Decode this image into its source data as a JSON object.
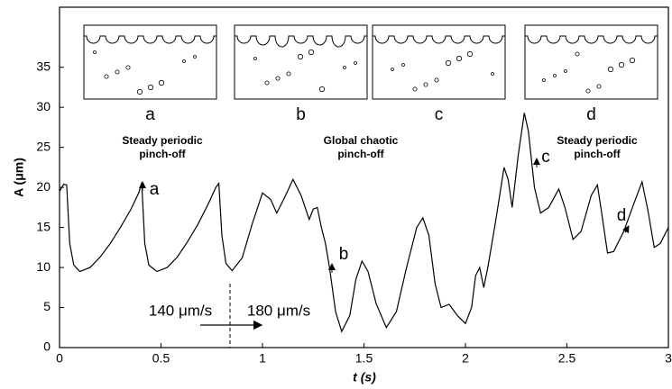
{
  "chart_data": {
    "type": "line",
    "xlabel": "t (s)",
    "ylabel": "A (μm)",
    "xlim": [
      0,
      3
    ],
    "ylim": [
      0,
      42.5
    ],
    "xticks": [
      0,
      0.5,
      1,
      1.5,
      2,
      2.5,
      3
    ],
    "yticks": [
      0,
      5,
      10,
      15,
      20,
      25,
      30,
      35
    ],
    "series": [
      {
        "color": "#000000",
        "x": [
          0,
          0.02,
          0.035,
          0.05,
          0.07,
          0.1,
          0.15,
          0.2,
          0.25,
          0.3,
          0.35,
          0.39,
          0.405,
          0.42,
          0.44,
          0.48,
          0.53,
          0.58,
          0.63,
          0.68,
          0.73,
          0.77,
          0.785,
          0.8,
          0.82,
          0.85,
          0.9,
          0.95,
          1.0,
          1.04,
          1.07,
          1.11,
          1.15,
          1.19,
          1.23,
          1.25,
          1.27,
          1.29,
          1.31,
          1.33,
          1.36,
          1.39,
          1.43,
          1.46,
          1.49,
          1.52,
          1.56,
          1.61,
          1.66,
          1.71,
          1.76,
          1.79,
          1.82,
          1.85,
          1.88,
          1.92,
          1.96,
          2.0,
          2.03,
          2.05,
          2.07,
          2.09,
          2.11,
          2.15,
          2.19,
          2.21,
          2.23,
          2.26,
          2.29,
          2.31,
          2.34,
          2.37,
          2.41,
          2.46,
          2.49,
          2.53,
          2.57,
          2.62,
          2.65,
          2.67,
          2.7,
          2.73,
          2.78,
          2.83,
          2.87,
          2.9,
          2.93,
          2.96,
          3.0
        ],
        "values": [
          19.5,
          20.4,
          20.3,
          13,
          10.3,
          9.5,
          10,
          11.3,
          13,
          15,
          17.2,
          19.3,
          20.6,
          13,
          10.3,
          9.5,
          10,
          11.3,
          13.2,
          15.3,
          17.8,
          20,
          20.5,
          14,
          10.5,
          9.6,
          11.2,
          15.5,
          19.3,
          18.5,
          16.8,
          18.8,
          21,
          19,
          16,
          17.3,
          17.5,
          15,
          13,
          10,
          4.5,
          2,
          4,
          8.5,
          10.8,
          9.5,
          5.5,
          2.5,
          4.5,
          10,
          15,
          16.2,
          14,
          8,
          5,
          5.4,
          4,
          3,
          5,
          9,
          10,
          7.5,
          10,
          16,
          22.5,
          21,
          17.5,
          24,
          29.3,
          27,
          20,
          16.8,
          17.5,
          19.8,
          17.5,
          13.5,
          14.5,
          19,
          20.3,
          17,
          11.8,
          12,
          14.5,
          18,
          20.7,
          17,
          12.5,
          13,
          15
        ]
      }
    ],
    "inset_labels": [
      "a",
      "b",
      "c",
      "d"
    ],
    "point_labels": [
      "a",
      "b",
      "c",
      "d"
    ],
    "regimes": [
      [
        "Steady periodic",
        "pinch-off"
      ],
      [
        "Global chaotic",
        "pinch-off"
      ],
      [
        "Steady periodic",
        "pinch-off"
      ]
    ],
    "speeds": [
      "140 μm/s",
      "180 μm/s"
    ]
  }
}
